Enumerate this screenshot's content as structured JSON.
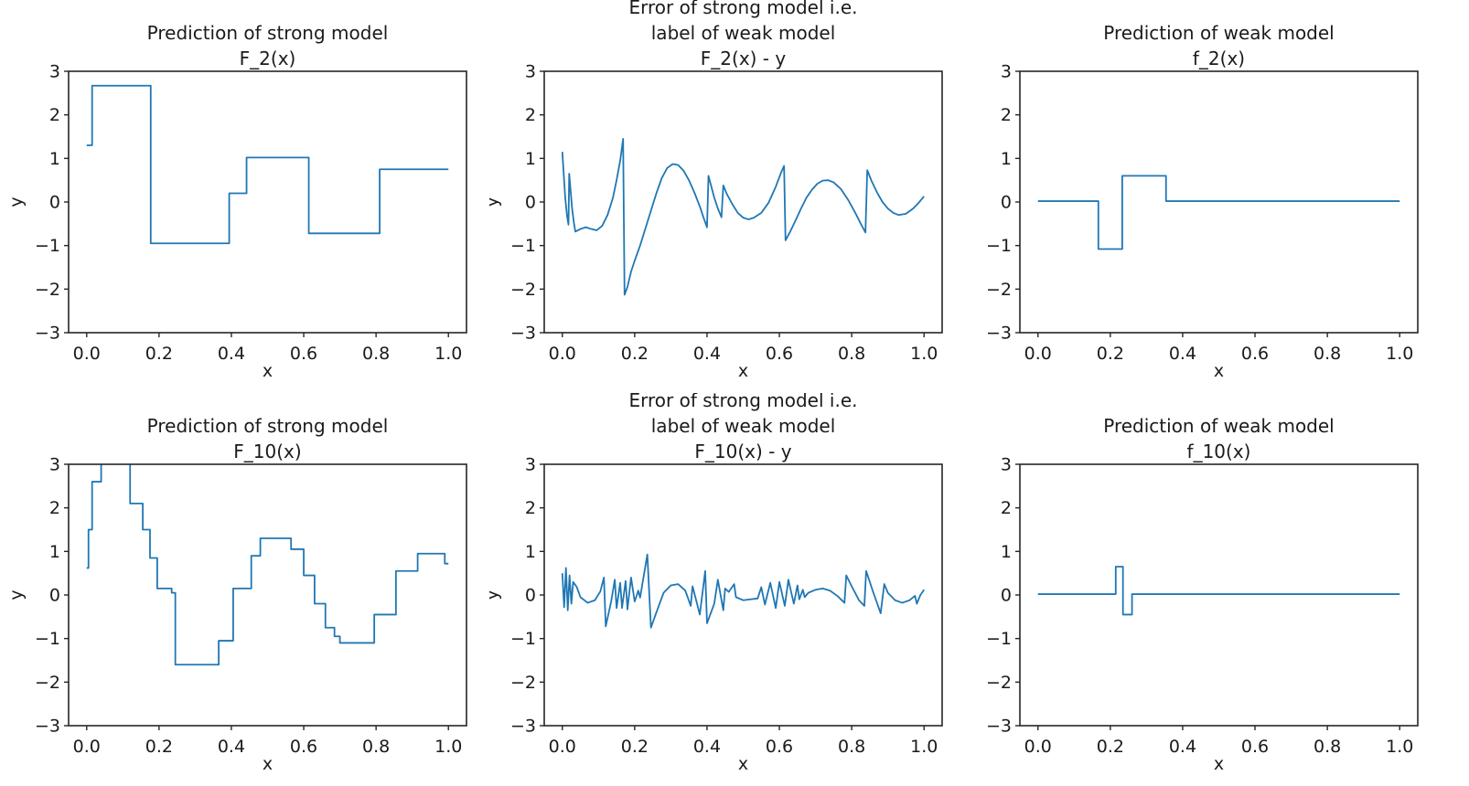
{
  "figure": {
    "background": "#ffffff",
    "line_color": "#1f77b4",
    "axis_color": "#262626",
    "text_color": "#1b1b1b"
  },
  "axes": {
    "xlabel": "x",
    "ylabel": "y",
    "xtick_labels": [
      "0.0",
      "0.2",
      "0.4",
      "0.6",
      "0.8",
      "1.0"
    ],
    "xtick_values": [
      0.0,
      0.2,
      0.4,
      0.6,
      0.8,
      1.0
    ],
    "ytick_labels": [
      "3",
      "2",
      "1",
      "0",
      "−1",
      "−2",
      "−3"
    ],
    "ytick_values": [
      3,
      2,
      1,
      0,
      -1,
      -2,
      -3
    ],
    "xlim": [
      -0.05,
      1.05
    ],
    "ylim": [
      -3,
      3
    ],
    "grid": false,
    "legend": "none"
  },
  "chart_data": [
    {
      "id": "prediction-strong-F2",
      "row": 0,
      "col": 0,
      "type": "line",
      "subtype": "step",
      "title": "Prediction of strong model F_2(x)",
      "title_lines": [
        "Prediction of strong model",
        "F_2(x)"
      ],
      "xlabel": "x",
      "ylabel": "y",
      "ylim": [
        -3,
        3
      ],
      "step_edges": [
        0.0,
        0.015,
        0.177,
        0.394,
        0.442,
        0.614,
        0.81,
        1.0
      ],
      "step_levels": [
        1.3,
        2.67,
        -0.95,
        0.2,
        1.02,
        -0.72,
        0.75
      ]
    },
    {
      "id": "error-strong-F2",
      "row": 0,
      "col": 1,
      "type": "line",
      "subtype": "curve",
      "title": "Error of strong model i.e. label of weak model F_2(x) - y",
      "title_lines": [
        "Error of strong model i.e.",
        "label of weak model",
        "F_2(x) - y"
      ],
      "xlabel": "x",
      "ylabel": "y",
      "ylim": [
        -3,
        3
      ],
      "x": [
        0.0,
        0.004,
        0.008,
        0.013,
        0.017,
        0.019,
        0.023,
        0.027,
        0.032,
        0.036,
        0.05,
        0.065,
        0.08,
        0.095,
        0.11,
        0.125,
        0.14,
        0.15,
        0.16,
        0.168,
        0.172,
        0.18,
        0.19,
        0.2,
        0.215,
        0.23,
        0.245,
        0.26,
        0.275,
        0.29,
        0.305,
        0.32,
        0.335,
        0.35,
        0.365,
        0.38,
        0.39,
        0.4,
        0.404,
        0.412,
        0.42,
        0.43,
        0.44,
        0.445,
        0.455,
        0.47,
        0.485,
        0.5,
        0.515,
        0.53,
        0.55,
        0.57,
        0.59,
        0.605,
        0.613,
        0.617,
        0.63,
        0.645,
        0.66,
        0.675,
        0.69,
        0.705,
        0.72,
        0.735,
        0.75,
        0.77,
        0.79,
        0.81,
        0.825,
        0.838,
        0.843,
        0.855,
        0.87,
        0.885,
        0.9,
        0.915,
        0.93,
        0.95,
        0.97,
        0.985,
        1.0
      ],
      "y": [
        1.15,
        0.62,
        0.1,
        -0.32,
        -0.52,
        0.65,
        0.25,
        -0.15,
        -0.48,
        -0.68,
        -0.62,
        -0.58,
        -0.62,
        -0.65,
        -0.55,
        -0.3,
        0.1,
        0.5,
        0.95,
        1.45,
        -2.13,
        -1.95,
        -1.6,
        -1.35,
        -1.0,
        -0.6,
        -0.2,
        0.2,
        0.55,
        0.78,
        0.87,
        0.85,
        0.72,
        0.5,
        0.22,
        -0.1,
        -0.35,
        -0.58,
        0.6,
        0.35,
        0.1,
        -0.15,
        -0.35,
        0.38,
        0.18,
        -0.05,
        -0.25,
        -0.36,
        -0.4,
        -0.36,
        -0.25,
        -0.02,
        0.35,
        0.68,
        0.83,
        -0.88,
        -0.68,
        -0.42,
        -0.15,
        0.1,
        0.28,
        0.42,
        0.49,
        0.5,
        0.45,
        0.3,
        0.05,
        -0.25,
        -0.5,
        -0.7,
        0.73,
        0.48,
        0.22,
        0.0,
        -0.15,
        -0.25,
        -0.3,
        -0.27,
        -0.15,
        -0.02,
        0.13
      ]
    },
    {
      "id": "prediction-weak-f2",
      "row": 0,
      "col": 2,
      "type": "line",
      "subtype": "step",
      "title": "Prediction of weak model f_2(x)",
      "title_lines": [
        "Prediction of weak model",
        "f_2(x)"
      ],
      "xlabel": "x",
      "ylabel": "y",
      "ylim": [
        -3,
        3
      ],
      "step_edges": [
        0.0,
        0.167,
        0.233,
        0.354,
        1.0
      ],
      "step_levels": [
        0.02,
        -1.08,
        0.6,
        0.02
      ]
    },
    {
      "id": "prediction-strong-F10",
      "row": 1,
      "col": 0,
      "type": "line",
      "subtype": "step",
      "title": "Prediction of strong model F_10(x)",
      "title_lines": [
        "Prediction of strong model",
        "F_10(x)"
      ],
      "xlabel": "x",
      "ylabel": "y",
      "ylim": [
        -3,
        3
      ],
      "step_edges": [
        0.0,
        0.005,
        0.015,
        0.04,
        0.12,
        0.155,
        0.175,
        0.195,
        0.235,
        0.245,
        0.365,
        0.405,
        0.455,
        0.48,
        0.565,
        0.6,
        0.63,
        0.66,
        0.685,
        0.7,
        0.795,
        0.855,
        0.915,
        0.99,
        1.0
      ],
      "step_levels": [
        0.62,
        1.5,
        2.6,
        3.5,
        2.1,
        1.5,
        0.85,
        0.15,
        0.05,
        -1.6,
        -1.05,
        0.15,
        0.9,
        1.3,
        1.05,
        0.45,
        -0.2,
        -0.75,
        -0.95,
        -1.1,
        -0.45,
        0.55,
        0.95,
        0.72
      ]
    },
    {
      "id": "error-strong-F10",
      "row": 1,
      "col": 1,
      "type": "line",
      "subtype": "curve",
      "title": "Error of strong model i.e. label of weak model F_10(x) - y",
      "title_lines": [
        "Error of strong model i.e.",
        "label of weak model",
        "F_10(x) - y"
      ],
      "xlabel": "x",
      "ylabel": "y",
      "ylim": [
        -3,
        3
      ],
      "x": [
        0.0,
        0.005,
        0.01,
        0.015,
        0.02,
        0.025,
        0.03,
        0.04,
        0.05,
        0.07,
        0.09,
        0.105,
        0.115,
        0.12,
        0.135,
        0.145,
        0.15,
        0.16,
        0.165,
        0.175,
        0.18,
        0.19,
        0.2,
        0.21,
        0.215,
        0.235,
        0.245,
        0.26,
        0.28,
        0.3,
        0.32,
        0.34,
        0.355,
        0.36,
        0.37,
        0.38,
        0.395,
        0.4,
        0.42,
        0.43,
        0.445,
        0.45,
        0.46,
        0.475,
        0.48,
        0.5,
        0.52,
        0.54,
        0.55,
        0.56,
        0.575,
        0.59,
        0.6,
        0.615,
        0.625,
        0.64,
        0.65,
        0.655,
        0.665,
        0.67,
        0.68,
        0.7,
        0.72,
        0.74,
        0.76,
        0.78,
        0.785,
        0.8,
        0.82,
        0.835,
        0.84,
        0.85,
        0.86,
        0.875,
        0.88,
        0.89,
        0.9,
        0.92,
        0.94,
        0.96,
        0.975,
        0.98,
        0.99,
        1.0
      ],
      "y": [
        0.5,
        -0.28,
        0.62,
        -0.35,
        0.45,
        -0.2,
        0.3,
        0.18,
        -0.05,
        -0.18,
        -0.12,
        0.08,
        0.4,
        -0.72,
        -0.15,
        0.35,
        -0.3,
        0.28,
        -0.3,
        0.32,
        -0.33,
        0.4,
        -0.15,
        0.1,
        -0.06,
        0.93,
        -0.75,
        -0.4,
        0.05,
        0.22,
        0.25,
        0.1,
        -0.25,
        0.2,
        -0.12,
        -0.45,
        0.55,
        -0.65,
        -0.2,
        0.35,
        -0.35,
        0.15,
        0.07,
        0.25,
        -0.05,
        -0.12,
        -0.1,
        -0.08,
        0.18,
        -0.22,
        0.28,
        -0.3,
        0.3,
        -0.25,
        0.35,
        -0.2,
        0.22,
        -0.1,
        0.12,
        -0.05,
        0.05,
        0.12,
        0.15,
        0.1,
        -0.02,
        -0.18,
        0.45,
        0.2,
        -0.12,
        -0.25,
        0.55,
        0.3,
        0.05,
        -0.3,
        -0.42,
        0.25,
        0.05,
        -0.12,
        -0.18,
        -0.12,
        -0.02,
        -0.2,
        0.0,
        0.12
      ]
    },
    {
      "id": "prediction-weak-f10",
      "row": 1,
      "col": 2,
      "type": "line",
      "subtype": "step",
      "title": "Prediction of weak model f_10(x)",
      "title_lines": [
        "Prediction of weak model",
        "f_10(x)"
      ],
      "xlabel": "x",
      "ylabel": "y",
      "ylim": [
        -3,
        3
      ],
      "step_edges": [
        0.0,
        0.215,
        0.235,
        0.26,
        1.0
      ],
      "step_levels": [
        0.02,
        0.65,
        -0.45,
        0.02
      ]
    }
  ]
}
